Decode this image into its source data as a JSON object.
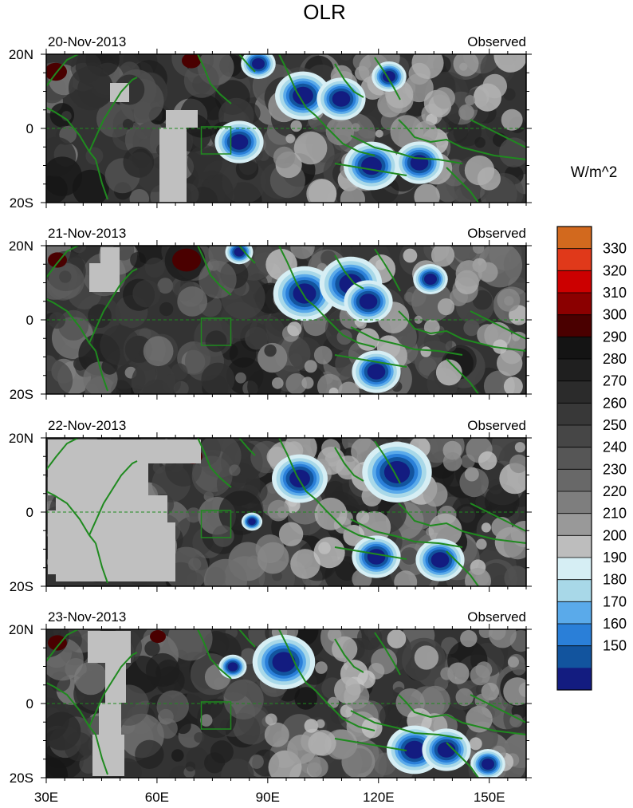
{
  "chart_data": {
    "type": "heatmap",
    "title": "OLR",
    "units_label": "W/m^2",
    "x_ticks": [
      "30E",
      "60E",
      "90E",
      "120E",
      "150E"
    ],
    "x_tick_values": [
      30,
      60,
      90,
      120,
      150
    ],
    "xlim": [
      30,
      160
    ],
    "y_ticks": [
      "20N",
      "0",
      "20S"
    ],
    "y_tick_values": [
      20,
      0,
      -20
    ],
    "ylim": [
      -20,
      20
    ],
    "panels": [
      {
        "date": "20-Nov-2013",
        "label": "Observed"
      },
      {
        "date": "21-Nov-2013",
        "label": "Observed"
      },
      {
        "date": "22-Nov-2013",
        "label": "Observed"
      },
      {
        "date": "23-Nov-2013",
        "label": "Observed"
      }
    ],
    "colorbar": {
      "labels": [
        "330",
        "320",
        "310",
        "300",
        "290",
        "280",
        "270",
        "260",
        "250",
        "240",
        "230",
        "220",
        "210",
        "200",
        "190",
        "180",
        "170",
        "160",
        "150"
      ],
      "colors": [
        "#d2691e",
        "#e0391a",
        "#cc0000",
        "#8b0000",
        "#4a0000",
        "#141414",
        "#1f1f1f",
        "#2b2b2b",
        "#383838",
        "#464646",
        "#565656",
        "#686868",
        "#7e7e7e",
        "#999999",
        "#bdbdbd",
        "#d6eef4",
        "#a8d8e8",
        "#5aaaea",
        "#2a7fd8",
        "#12549e",
        "#131c80"
      ]
    },
    "colors": {
      "coastline": "#1f8a1f",
      "missing": "#c0c0c0",
      "background": "#333333"
    }
  }
}
